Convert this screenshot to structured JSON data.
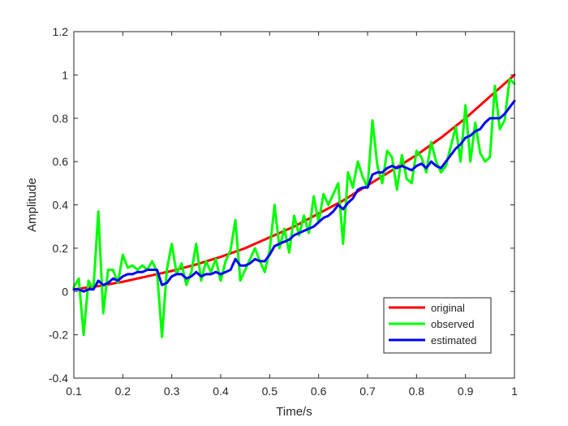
{
  "chart_data": {
    "type": "line",
    "xlabel": "Time/s",
    "ylabel": "Amplitude",
    "xlim": [
      0.1,
      1
    ],
    "ylim": [
      -0.4,
      1.2
    ],
    "xticks": [
      0.1,
      0.2,
      0.3,
      0.4,
      0.5,
      0.6,
      0.7,
      0.8,
      0.9,
      1
    ],
    "xtick_labels": [
      "0.1",
      "0.2",
      "0.3",
      "0.4",
      "0.5",
      "0.6",
      "0.7",
      "0.8",
      "0.9",
      "1"
    ],
    "yticks": [
      -0.4,
      -0.2,
      0,
      0.2,
      0.4,
      0.6,
      0.8,
      1,
      1.2
    ],
    "ytick_labels": [
      "-0.4",
      "-0.2",
      "0",
      "0.2",
      "0.4",
      "0.6",
      "0.8",
      "1",
      "1.2"
    ],
    "grid": false,
    "legend_position": "bottom-right",
    "series": [
      {
        "name": "original",
        "color": "#ff0000",
        "x": [
          0.1,
          0.15,
          0.2,
          0.25,
          0.3,
          0.35,
          0.4,
          0.45,
          0.5,
          0.55,
          0.6,
          0.65,
          0.7,
          0.75,
          0.8,
          0.85,
          0.9,
          0.95,
          1.0
        ],
        "y": [
          0.01,
          0.025,
          0.045,
          0.07,
          0.095,
          0.125,
          0.16,
          0.2,
          0.25,
          0.3,
          0.36,
          0.42,
          0.49,
          0.56,
          0.63,
          0.71,
          0.8,
          0.9,
          1.0
        ]
      },
      {
        "name": "observed",
        "color": "#00ff00",
        "x": [
          0.1,
          0.11,
          0.12,
          0.13,
          0.14,
          0.15,
          0.16,
          0.17,
          0.18,
          0.19,
          0.2,
          0.21,
          0.22,
          0.23,
          0.24,
          0.25,
          0.26,
          0.27,
          0.28,
          0.29,
          0.3,
          0.31,
          0.32,
          0.33,
          0.34,
          0.35,
          0.36,
          0.37,
          0.38,
          0.39,
          0.4,
          0.41,
          0.42,
          0.43,
          0.44,
          0.45,
          0.46,
          0.47,
          0.48,
          0.49,
          0.5,
          0.51,
          0.52,
          0.53,
          0.54,
          0.55,
          0.56,
          0.57,
          0.58,
          0.59,
          0.6,
          0.61,
          0.62,
          0.63,
          0.64,
          0.65,
          0.66,
          0.67,
          0.68,
          0.69,
          0.7,
          0.71,
          0.72,
          0.73,
          0.74,
          0.75,
          0.76,
          0.77,
          0.78,
          0.79,
          0.8,
          0.81,
          0.82,
          0.83,
          0.84,
          0.85,
          0.86,
          0.87,
          0.88,
          0.89,
          0.9,
          0.91,
          0.92,
          0.93,
          0.94,
          0.95,
          0.96,
          0.97,
          0.98,
          0.99,
          1.0
        ],
        "y": [
          0.02,
          0.06,
          -0.2,
          0.05,
          0.01,
          0.37,
          -0.1,
          0.1,
          0.1,
          0.04,
          0.17,
          0.11,
          0.12,
          0.1,
          0.12,
          0.1,
          0.14,
          0.09,
          -0.21,
          0.1,
          0.22,
          0.08,
          0.13,
          0.03,
          0.09,
          0.22,
          0.05,
          0.14,
          0.09,
          0.15,
          0.05,
          0.14,
          0.19,
          0.33,
          0.05,
          0.1,
          0.15,
          0.2,
          0.14,
          0.09,
          0.19,
          0.4,
          0.2,
          0.29,
          0.18,
          0.35,
          0.26,
          0.35,
          0.27,
          0.44,
          0.32,
          0.45,
          0.4,
          0.45,
          0.5,
          0.22,
          0.55,
          0.48,
          0.6,
          0.53,
          0.48,
          0.79,
          0.58,
          0.5,
          0.65,
          0.62,
          0.47,
          0.63,
          0.52,
          0.5,
          0.65,
          0.62,
          0.55,
          0.69,
          0.6,
          0.55,
          0.58,
          0.67,
          0.76,
          0.6,
          0.86,
          0.6,
          0.78,
          0.64,
          0.6,
          0.62,
          0.95,
          0.75,
          0.79,
          0.98,
          0.96
        ]
      },
      {
        "name": "estimated",
        "color": "#0000ff",
        "x": [
          0.1,
          0.11,
          0.12,
          0.13,
          0.14,
          0.15,
          0.16,
          0.17,
          0.18,
          0.19,
          0.2,
          0.21,
          0.22,
          0.23,
          0.24,
          0.25,
          0.26,
          0.27,
          0.28,
          0.29,
          0.3,
          0.31,
          0.32,
          0.33,
          0.34,
          0.35,
          0.36,
          0.37,
          0.38,
          0.39,
          0.4,
          0.41,
          0.42,
          0.43,
          0.44,
          0.45,
          0.46,
          0.47,
          0.48,
          0.49,
          0.5,
          0.51,
          0.52,
          0.53,
          0.54,
          0.55,
          0.56,
          0.57,
          0.58,
          0.59,
          0.6,
          0.61,
          0.62,
          0.63,
          0.64,
          0.65,
          0.66,
          0.67,
          0.68,
          0.69,
          0.7,
          0.71,
          0.72,
          0.73,
          0.74,
          0.75,
          0.76,
          0.77,
          0.78,
          0.79,
          0.8,
          0.81,
          0.82,
          0.83,
          0.84,
          0.85,
          0.86,
          0.87,
          0.88,
          0.89,
          0.9,
          0.91,
          0.92,
          0.93,
          0.94,
          0.95,
          0.96,
          0.97,
          0.98,
          0.99,
          1.0
        ],
        "y": [
          0.01,
          0.01,
          0.0,
          0.01,
          0.01,
          0.05,
          0.03,
          0.04,
          0.06,
          0.05,
          0.07,
          0.08,
          0.08,
          0.09,
          0.09,
          0.1,
          0.1,
          0.1,
          0.03,
          0.04,
          0.07,
          0.08,
          0.08,
          0.06,
          0.07,
          0.09,
          0.07,
          0.08,
          0.08,
          0.09,
          0.08,
          0.09,
          0.1,
          0.15,
          0.12,
          0.12,
          0.13,
          0.15,
          0.14,
          0.14,
          0.17,
          0.21,
          0.22,
          0.23,
          0.24,
          0.26,
          0.27,
          0.28,
          0.29,
          0.3,
          0.32,
          0.34,
          0.35,
          0.37,
          0.4,
          0.38,
          0.41,
          0.43,
          0.47,
          0.48,
          0.48,
          0.54,
          0.55,
          0.55,
          0.57,
          0.58,
          0.57,
          0.58,
          0.57,
          0.56,
          0.58,
          0.59,
          0.57,
          0.6,
          0.58,
          0.57,
          0.6,
          0.63,
          0.66,
          0.68,
          0.71,
          0.72,
          0.74,
          0.75,
          0.78,
          0.8,
          0.8,
          0.8,
          0.82,
          0.85,
          0.88
        ]
      }
    ]
  }
}
